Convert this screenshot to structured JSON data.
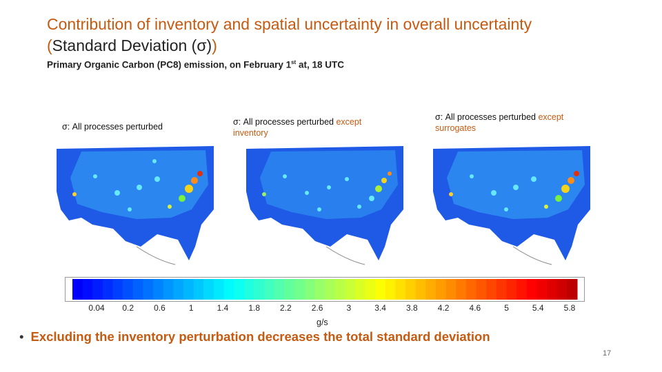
{
  "slide": {
    "title_line1": "Contribution of inventory and spatial uncertainty in overall uncertainty",
    "title_line2_open": "(",
    "title_line2_main": "Standard Deviation  (σ)",
    "title_line2_close": ")",
    "subtitle_prefix": "Primary Organic Carbon (PC8) emission, on February 1",
    "subtitle_sup": "st",
    "subtitle_suffix": " at, 18 UTC",
    "panels": [
      {
        "label_main": "σ:  All processes perturbed",
        "label_except": ""
      },
      {
        "label_main": "σ:  All processes perturbed ",
        "label_except": "except inventory"
      },
      {
        "label_main": "σ:  All processes perturbed ",
        "label_except": "except surrogates"
      }
    ],
    "colorbar": {
      "ticks": [
        "0.04",
        "0.2",
        "0.6",
        "1",
        "1.4",
        "1.8",
        "2.2",
        "2.6",
        "3",
        "3.4",
        "3.8",
        "4.2",
        "4.6",
        "5",
        "5.4",
        "5.8"
      ],
      "units": "g/s"
    },
    "bullet_text": "Excluding the inventory perturbation decreases the total standard deviation",
    "bullet_symbol": "•",
    "page_number": "17"
  }
}
